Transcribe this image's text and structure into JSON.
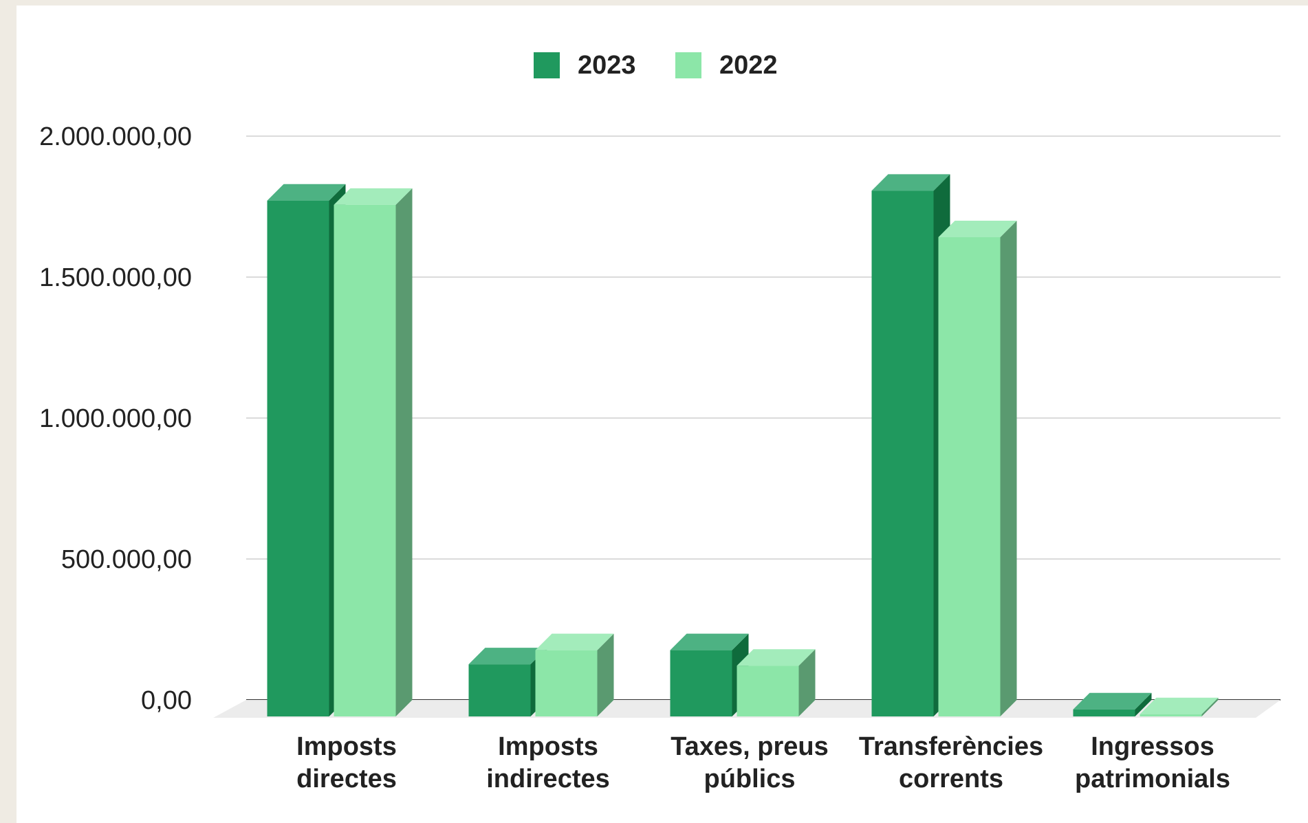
{
  "chart_data": {
    "type": "bar",
    "title": "",
    "xlabel": "",
    "ylabel": "",
    "categories": [
      [
        "Imposts",
        "directes"
      ],
      [
        "Imposts",
        "indirectes"
      ],
      [
        "Taxes, preus",
        "públics"
      ],
      [
        "Transferències",
        "corrents"
      ],
      [
        "Ingressos",
        "patrimonials"
      ]
    ],
    "series": [
      {
        "name": "2023",
        "values": [
          1830000,
          185000,
          235000,
          1865000,
          25000
        ]
      },
      {
        "name": "2022",
        "values": [
          1815000,
          235000,
          180000,
          1700000,
          8000
        ]
      }
    ],
    "ylim": [
      0,
      2000000
    ],
    "yticks": [
      {
        "value": 0,
        "label": "0,00"
      },
      {
        "value": 500000,
        "label": "500.000,00"
      },
      {
        "value": 1000000,
        "label": "1.000.000,00"
      },
      {
        "value": 1500000,
        "label": "1.500.000,00"
      },
      {
        "value": 2000000,
        "label": "2.000.000,00"
      }
    ],
    "legend_position": "top",
    "grid": true,
    "colors": {
      "2023": {
        "front": "#20995e",
        "top": "#4db283",
        "side": "#0f6b3c"
      },
      "2022": {
        "front": "#8ce6a8",
        "top": "#a3ecbb",
        "side": "#5a9a70"
      }
    }
  }
}
